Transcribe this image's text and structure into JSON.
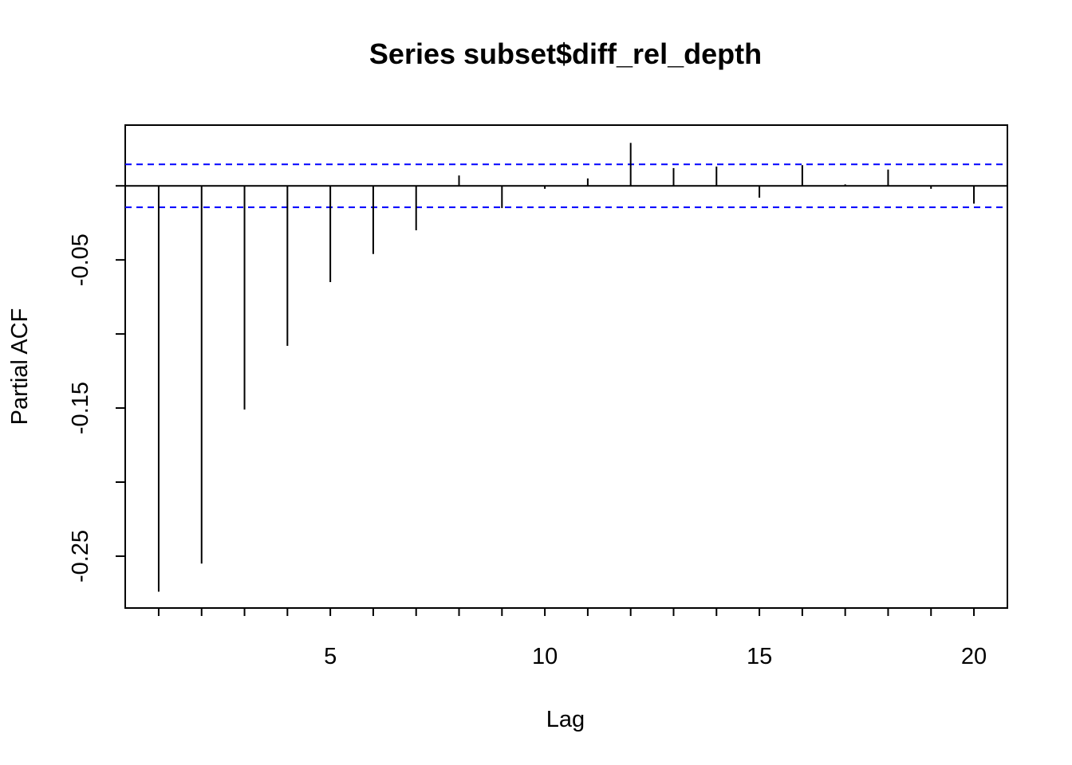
{
  "chart_data": {
    "type": "bar",
    "title": "Series  subset$diff_rel_depth",
    "xlabel": "Lag",
    "ylabel": "Partial ACF",
    "xlim": [
      0.22,
      20.78
    ],
    "ylim": [
      -0.285,
      0.041
    ],
    "x_ticks": [
      5,
      10,
      15,
      20
    ],
    "x_tick_labels": [
      "5",
      "10",
      "15",
      "20"
    ],
    "x_minor_ticks": [
      1,
      2,
      3,
      4,
      5,
      6,
      7,
      8,
      9,
      10,
      11,
      12,
      13,
      14,
      15,
      16,
      17,
      18,
      19,
      20
    ],
    "y_ticks": [
      -0.25,
      -0.2,
      -0.15,
      -0.1,
      -0.05,
      0
    ],
    "y_tick_labels": [
      "-0.25",
      "",
      "-0.15",
      "",
      "-0.05",
      ""
    ],
    "lags": [
      1,
      2,
      3,
      4,
      5,
      6,
      7,
      8,
      9,
      10,
      11,
      12,
      13,
      14,
      15,
      16,
      17,
      18,
      19,
      20
    ],
    "values": [
      -0.274,
      -0.255,
      -0.151,
      -0.108,
      -0.065,
      -0.046,
      -0.03,
      0.007,
      -0.015,
      -0.002,
      0.005,
      0.029,
      0.012,
      0.013,
      -0.008,
      0.014,
      0.001,
      0.011,
      -0.002,
      -0.012
    ],
    "confidence_bound": 0.0145,
    "zero_line": true,
    "grid": false,
    "colors": {
      "bars": "#000000",
      "confidence": "#0000ff",
      "frame": "#000000"
    }
  }
}
